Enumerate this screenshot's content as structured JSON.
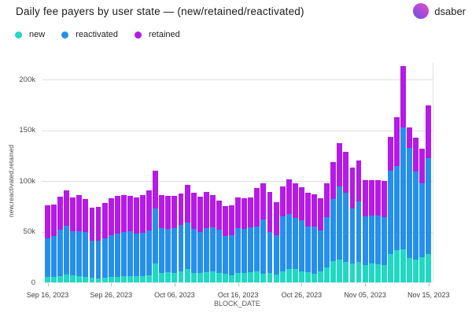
{
  "header": {
    "title": "Daily fee payers by user state — (new/retained/reactivated)",
    "author": "dsaber"
  },
  "legend": [
    {
      "label": "new",
      "color": "#21d9c3"
    },
    {
      "label": "reactivated",
      "color": "#2590ea"
    },
    {
      "label": "retained",
      "color": "#b51ae6"
    }
  ],
  "chart_data": {
    "type": "bar",
    "stacked": true,
    "title": "Daily fee payers by user state — (new/retained/reactivated)",
    "xlabel": "BLOCK_DATE",
    "ylabel": "new,reactivated,retained",
    "ylim": [
      0,
      220000
    ],
    "grid": true,
    "yticks": {
      "values": [
        0,
        50000,
        100000,
        150000,
        200000
      ],
      "labels": [
        "0",
        "50k",
        "100k",
        "150k",
        "200k"
      ]
    },
    "xticks": {
      "indices": [
        0,
        10,
        20,
        30,
        40,
        50,
        60
      ],
      "labels": [
        "Sep 16, 2023",
        "Sep 26, 2023",
        "Oct 06, 2023",
        "Oct 16, 2023",
        "Oct 26, 2023",
        "Nov 05, 2023",
        "Nov 15, 2023"
      ]
    },
    "categories": [
      "Sep 16, 2023",
      "Sep 17, 2023",
      "Sep 18, 2023",
      "Sep 19, 2023",
      "Sep 20, 2023",
      "Sep 21, 2023",
      "Sep 22, 2023",
      "Sep 23, 2023",
      "Sep 24, 2023",
      "Sep 25, 2023",
      "Sep 26, 2023",
      "Sep 27, 2023",
      "Sep 28, 2023",
      "Sep 29, 2023",
      "Sep 30, 2023",
      "Oct 01, 2023",
      "Oct 02, 2023",
      "Oct 03, 2023",
      "Oct 04, 2023",
      "Oct 05, 2023",
      "Oct 06, 2023",
      "Oct 07, 2023",
      "Oct 08, 2023",
      "Oct 09, 2023",
      "Oct 10, 2023",
      "Oct 11, 2023",
      "Oct 12, 2023",
      "Oct 13, 2023",
      "Oct 14, 2023",
      "Oct 15, 2023",
      "Oct 16, 2023",
      "Oct 17, 2023",
      "Oct 18, 2023",
      "Oct 19, 2023",
      "Oct 20, 2023",
      "Oct 21, 2023",
      "Oct 22, 2023",
      "Oct 23, 2023",
      "Oct 24, 2023",
      "Oct 25, 2023",
      "Oct 26, 2023",
      "Oct 27, 2023",
      "Oct 28, 2023",
      "Oct 29, 2023",
      "Oct 30, 2023",
      "Oct 31, 2023",
      "Nov 01, 2023",
      "Nov 02, 2023",
      "Nov 03, 2023",
      "Nov 04, 2023",
      "Nov 05, 2023",
      "Nov 06, 2023",
      "Nov 07, 2023",
      "Nov 08, 2023",
      "Nov 09, 2023",
      "Nov 10, 2023",
      "Nov 11, 2023",
      "Nov 12, 2023",
      "Nov 13, 2023",
      "Nov 14, 2023",
      "Nov 15, 2023"
    ],
    "series": [
      {
        "name": "new",
        "color": "#21d9c3",
        "values": [
          5200,
          5700,
          6200,
          7800,
          7000,
          6200,
          5700,
          4400,
          3900,
          4400,
          5200,
          5700,
          6200,
          6400,
          6200,
          6500,
          7000,
          18600,
          9300,
          10000,
          9500,
          11000,
          13500,
          9500,
          9000,
          10000,
          11000,
          9500,
          8800,
          7000,
          9100,
          9500,
          10100,
          10900,
          8300,
          9500,
          8000,
          11000,
          13400,
          13000,
          11000,
          10000,
          8300,
          10900,
          14700,
          21200,
          22500,
          20400,
          18600,
          19900,
          17300,
          18600,
          17800,
          17300,
          27600,
          31500,
          32800,
          23800,
          22500,
          25000,
          27600
        ]
      },
      {
        "name": "reactivated",
        "color": "#2590ea",
        "values": [
          38000,
          40000,
          45500,
          48200,
          43400,
          43900,
          43900,
          36900,
          37200,
          39000,
          41000,
          42600,
          43400,
          43700,
          42100,
          42000,
          44500,
          54300,
          44200,
          43000,
          44000,
          45500,
          45500,
          43500,
          41000,
          43500,
          43000,
          42700,
          36900,
          39300,
          44400,
          43500,
          43900,
          44000,
          53500,
          40100,
          38500,
          54100,
          53800,
          50800,
          50200,
          44800,
          46500,
          40000,
          49600,
          60700,
          71800,
          68000,
          54300,
          59900,
          47800,
          47600,
          48000,
          46900,
          82700,
          83200,
          119700,
          109000,
          86500,
          72400,
          94900
        ]
      },
      {
        "name": "retained",
        "color": "#b51ae6",
        "values": [
          32800,
          31300,
          33000,
          34900,
          33600,
          35700,
          32300,
          32100,
          33100,
          34600,
          36800,
          36700,
          36400,
          35400,
          35700,
          37500,
          39500,
          37400,
          32300,
          32000,
          31500,
          31000,
          37000,
          35000,
          34500,
          35400,
          32300,
          28400,
          29700,
          29900,
          30500,
          30200,
          30000,
          38000,
          36200,
          39300,
          32800,
          29700,
          34600,
          34100,
          32800,
          33600,
          32300,
          31800,
          33100,
          37000,
          42700,
          40500,
          40000,
          40100,
          35700,
          34600,
          35000,
          35800,
          33100,
          48100,
          60400,
          19700,
          33600,
          34100,
          51700
        ]
      }
    ]
  }
}
